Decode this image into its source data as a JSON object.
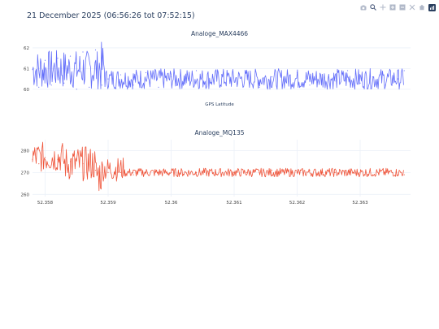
{
  "page": {
    "title": "21 December 2025 (06:56:26 tot 07:52:15)"
  },
  "modebar": {
    "icons": [
      "camera-icon",
      "zoom-icon",
      "pan-icon",
      "zoom-in-icon",
      "zoom-out-icon",
      "autoscale-icon",
      "reset-axes-icon",
      "plotly-logo-icon"
    ]
  },
  "colors": {
    "series1": "#636efa",
    "series2": "#ef553b",
    "grid": "#ebf0f8",
    "text": "#2a3f5f"
  },
  "chart_data": [
    {
      "type": "line",
      "title": "Analoge_MAX4466",
      "xlabel": "GPS Latitude",
      "ylabel": "",
      "xlim": [
        52.3578,
        52.3638
      ],
      "ylim": [
        59.8,
        62.35
      ],
      "yticks": [
        60,
        61,
        62
      ],
      "ytick_labels": [
        "60",
        "61",
        "62"
      ],
      "grid": true,
      "series": [
        {
          "x": [
            52.3579,
            52.358,
            52.3581,
            52.3582,
            52.3583,
            52.3584,
            52.3585,
            52.3586,
            52.3587,
            52.3588,
            52.3589,
            52.359,
            52.3592,
            52.3594,
            52.3596,
            52.3598,
            52.36,
            52.3602,
            52.3604,
            52.3606,
            52.3608,
            52.361,
            52.3612,
            52.3614,
            52.3616,
            52.3618,
            52.362,
            52.3622,
            52.3624,
            52.3626,
            52.3628,
            52.363,
            52.3632,
            52.3634,
            52.3636,
            52.3637
          ],
          "y": [
            60.1,
            61.4,
            60.2,
            61.5,
            60.3,
            61.6,
            60.0,
            61.8,
            60.1,
            61.9,
            60.2,
            60.5,
            60.7,
            60.2,
            60.8,
            60.1,
            60.6,
            60.3,
            60.9,
            60.2,
            60.7,
            60.4,
            60.8,
            60.1,
            60.6,
            60.3,
            60.8,
            60.2,
            60.7,
            60.4,
            60.9,
            60.3,
            60.6,
            60.2,
            60.5,
            60.9
          ],
          "dense": [
            {
              "x_from": 52.3578,
              "x_to": 52.35885,
              "y_min": 60.0,
              "y_max": 61.9
            },
            {
              "x_from": 52.35885,
              "x_to": 52.35895,
              "y_min": 59.8,
              "y_max": 62.3
            },
            {
              "x_from": 52.35895,
              "x_to": 52.3637,
              "y_min": 60.0,
              "y_max": 61.0
            }
          ]
        }
      ]
    },
    {
      "type": "line",
      "title": "Analoge_MQ135",
      "xlabel": "",
      "ylabel": "",
      "xlim": [
        52.3578,
        52.3638
      ],
      "ylim": [
        259,
        285
      ],
      "xticks": [
        52.358,
        52.359,
        52.36,
        52.361,
        52.362,
        52.363
      ],
      "xtick_labels": [
        "52.358",
        "52.359",
        "52.36",
        "52.361",
        "52.362",
        "52.363"
      ],
      "yticks": [
        260,
        270,
        280
      ],
      "ytick_labels": [
        "260",
        "270",
        "280"
      ],
      "grid": true,
      "series": [
        {
          "x": [
            52.3578,
            52.3579,
            52.358,
            52.3582,
            52.3584,
            52.3586,
            52.3588,
            52.359,
            52.3592,
            52.3594,
            52.3596,
            52.3598,
            52.36,
            52.3602,
            52.3604,
            52.3606,
            52.3608,
            52.361,
            52.3612,
            52.3614,
            52.3616,
            52.3618,
            52.362,
            52.3622,
            52.3624,
            52.3626,
            52.3628,
            52.363,
            52.3632,
            52.3634,
            52.3636,
            52.3637
          ],
          "y": [
            276,
            274,
            277,
            276,
            275,
            274,
            271,
            270,
            270,
            269,
            270,
            269,
            270,
            269,
            270,
            269,
            269,
            270,
            270,
            270,
            271,
            270,
            270,
            271,
            270,
            270,
            269,
            270,
            269,
            270,
            269,
            269
          ],
          "dense": [
            {
              "x_from": 52.3578,
              "x_to": 52.3583,
              "y_min": 270,
              "y_max": 284
            },
            {
              "x_from": 52.3583,
              "x_to": 52.3588,
              "y_min": 266,
              "y_max": 282
            },
            {
              "x_from": 52.3588,
              "x_to": 52.3589,
              "y_min": 260,
              "y_max": 278
            },
            {
              "x_from": 52.3589,
              "x_to": 52.35925,
              "y_min": 266,
              "y_max": 277
            },
            {
              "x_from": 52.35925,
              "x_to": 52.3637,
              "y_min": 268,
              "y_max": 272
            }
          ]
        }
      ]
    }
  ]
}
